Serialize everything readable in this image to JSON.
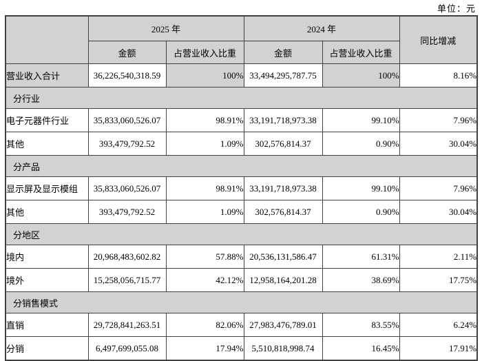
{
  "unit_label": "单位：元",
  "table": {
    "header": {
      "empty": "",
      "year_2025": "2025 年",
      "year_2024": "2024 年",
      "yoy": "同比增减",
      "amount_2025": "金额",
      "ratio_2025": "占营业收入比重",
      "amount_2024": "金额",
      "ratio_2024": "占营业收入比重"
    },
    "colors": {
      "header_bg": "#d2d2d2",
      "row_bg": "#ffffff",
      "border": "#404040",
      "text": "#000000"
    },
    "rows": [
      {
        "type": "data",
        "shaded_label_and_ratios": true,
        "label": "营业收入合计",
        "cells": [
          "36,226,540,318.59",
          "100%",
          "33,494,295,787.75",
          "100%",
          "8.16%"
        ]
      },
      {
        "type": "section",
        "label": "分行业"
      },
      {
        "type": "data",
        "shaded_label_and_ratios": false,
        "label": "电子元器件行业",
        "cells": [
          "35,833,060,526.07",
          "98.91%",
          "33,191,718,973.38",
          "99.10%",
          "7.96%"
        ]
      },
      {
        "type": "data",
        "shaded_label_and_ratios": false,
        "label": "其他",
        "cells": [
          "393,479,792.52",
          "1.09%",
          "302,576,814.37",
          "0.90%",
          "30.04%"
        ]
      },
      {
        "type": "section",
        "label": "分产品"
      },
      {
        "type": "data",
        "shaded_label_and_ratios": false,
        "label": "显示屏及显示模组",
        "cells": [
          "35,833,060,526.07",
          "98.91%",
          "33,191,718,973.38",
          "99.10%",
          "7.96%"
        ]
      },
      {
        "type": "data",
        "shaded_label_and_ratios": false,
        "label": "其他",
        "cells": [
          "393,479,792.52",
          "1.09%",
          "302,576,814.37",
          "0.90%",
          "30.04%"
        ]
      },
      {
        "type": "section",
        "label": "分地区"
      },
      {
        "type": "data",
        "shaded_label_and_ratios": false,
        "label": "境内",
        "cells": [
          "20,968,483,602.82",
          "57.88%",
          "20,536,131,586.47",
          "61.31%",
          "2.11%"
        ]
      },
      {
        "type": "data",
        "shaded_label_and_ratios": false,
        "label": "境外",
        "cells": [
          "15,258,056,715.77",
          "42.12%",
          "12,958,164,201.28",
          "38.69%",
          "17.75%"
        ]
      },
      {
        "type": "section",
        "label": "分销售模式"
      },
      {
        "type": "data",
        "shaded_label_and_ratios": false,
        "label": "直销",
        "cells": [
          "29,728,841,263.51",
          "82.06%",
          "27,983,476,789.01",
          "83.55%",
          "6.24%"
        ]
      },
      {
        "type": "data",
        "shaded_label_and_ratios": false,
        "label": "分销",
        "cells": [
          "6,497,699,055.08",
          "17.94%",
          "5,510,818,998.74",
          "16.45%",
          "17.91%"
        ]
      }
    ]
  }
}
